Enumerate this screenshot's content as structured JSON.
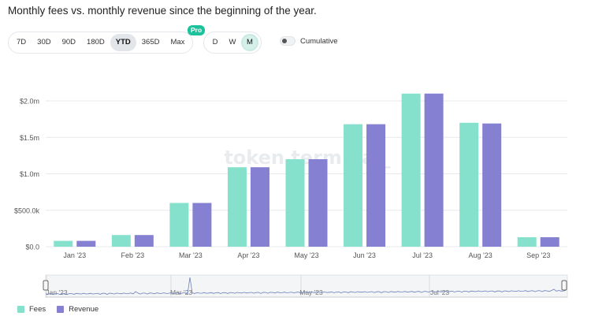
{
  "title": "Monthly fees vs. monthly revenue since the beginning of the year.",
  "range_buttons": [
    {
      "label": "7D",
      "active": false
    },
    {
      "label": "30D",
      "active": false
    },
    {
      "label": "90D",
      "active": false
    },
    {
      "label": "180D",
      "active": false
    },
    {
      "label": "YTD",
      "active": true
    },
    {
      "label": "365D",
      "active": false
    },
    {
      "label": "Max",
      "active": false
    }
  ],
  "pro_badge": "Pro",
  "granularity_buttons": [
    {
      "label": "D",
      "active": false
    },
    {
      "label": "W",
      "active": false
    },
    {
      "label": "M",
      "active": true
    }
  ],
  "cumulative_label": "Cumulative",
  "watermark": "token terminal_",
  "colors": {
    "fees": "#86e1cc",
    "revenue": "#8580d1",
    "grid": "#e6e8eb",
    "axis_text": "#555"
  },
  "chart_data": {
    "type": "bar",
    "categories": [
      "Jan '23",
      "Feb '23",
      "Mar '23",
      "Apr '23",
      "May '23",
      "Jun '23",
      "Jul '23",
      "Aug '23",
      "Sep '23"
    ],
    "series": [
      {
        "name": "Fees",
        "values": [
          0.08,
          0.16,
          0.6,
          1.09,
          1.2,
          1.68,
          2.1,
          1.7,
          0.13
        ]
      },
      {
        "name": "Revenue",
        "values": [
          0.08,
          0.16,
          0.6,
          1.09,
          1.2,
          1.68,
          2.1,
          1.69,
          0.13
        ]
      }
    ],
    "unit": "millions USD",
    "y_ticks": [
      "$0.0",
      "$500.0k",
      "$1.0m",
      "$1.5m",
      "$2.0m"
    ],
    "y_tick_values": [
      0,
      0.5,
      1.0,
      1.5,
      2.0
    ],
    "ylim": [
      0,
      2.2
    ],
    "grid": true,
    "legend_position": "bottom-left",
    "navigator": {
      "labels": [
        "Jan '23",
        "Mar '23",
        "May '23",
        "Jul '23"
      ]
    }
  }
}
